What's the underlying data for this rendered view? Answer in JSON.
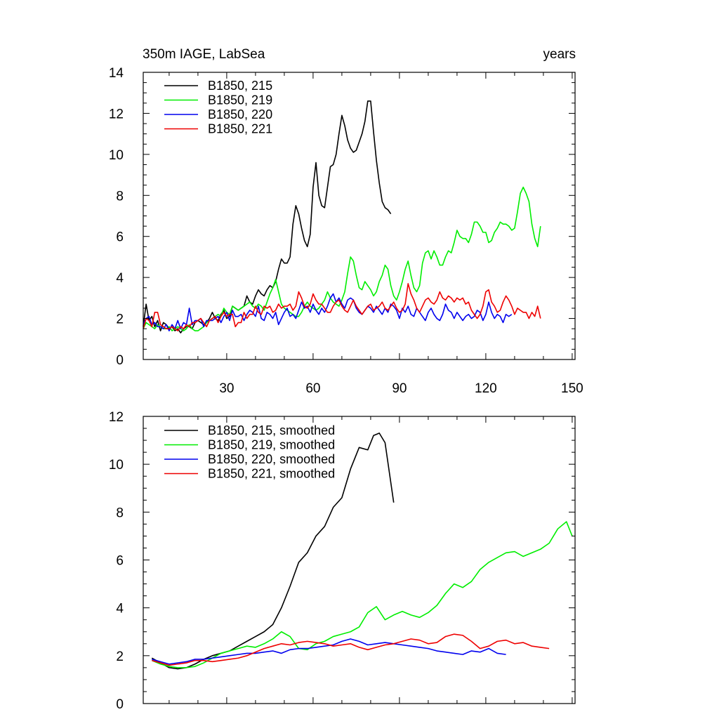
{
  "colors": {
    "215": "#000000",
    "219": "#00ee00",
    "220": "#0000ee",
    "221": "#ee0000"
  },
  "chart_data": [
    {
      "type": "line",
      "title": "350m IAGE, LabSea",
      "units": "years",
      "xlabel": "",
      "ylabel": "",
      "xlim": [
        1,
        151
      ],
      "ylim": [
        0,
        14
      ],
      "x_tick_labels": [
        "30",
        "60",
        "90",
        "120",
        "150"
      ],
      "y_tick_labels": [
        "0",
        "2",
        "4",
        "6",
        "8",
        "10",
        "12",
        "14"
      ],
      "legend": "top-left",
      "series": [
        {
          "name": "B1850, 215",
          "color": "#000000",
          "x_start": 1,
          "values": [
            1.6,
            2.7,
            1.9,
            2.1,
            1.6,
            1.9,
            1.4,
            1.8,
            1.7,
            1.5,
            1.6,
            1.4,
            1.5,
            1.3,
            1.5,
            1.6,
            1.6,
            1.5,
            1.8,
            1.9,
            1.8,
            1.7,
            1.8,
            2.0,
            2.3,
            2.0,
            1.9,
            2.2,
            2.4,
            2.0,
            2.1,
            2.6,
            2.5,
            2.4,
            2.5,
            2.6,
            3.1,
            2.8,
            2.7,
            3.1,
            3.4,
            3.2,
            3.1,
            3.4,
            3.6,
            3.5,
            3.8,
            4.4,
            4.9,
            4.7,
            4.7,
            5.0,
            6.6,
            7.5,
            7.1,
            6.4,
            5.8,
            5.5,
            6.1,
            8.4,
            9.6,
            8.0,
            7.5,
            7.4,
            8.4,
            9.4,
            9.5,
            10.0,
            11.0,
            11.9,
            11.4,
            10.7,
            10.3,
            10.1,
            10.2,
            10.6,
            11.0,
            11.6,
            12.6,
            12.6,
            11.1,
            9.7,
            8.6,
            7.7,
            7.4,
            7.3,
            7.1
          ]
        },
        {
          "name": "B1850, 219",
          "color": "#00ee00",
          "x_start": 1,
          "values": [
            1.5,
            1.8,
            1.7,
            1.6,
            1.5,
            1.7,
            1.6,
            1.5,
            1.5,
            1.6,
            1.4,
            1.5,
            1.6,
            1.5,
            1.4,
            1.5,
            1.7,
            1.5,
            1.4,
            1.4,
            1.5,
            1.6,
            1.8,
            1.9,
            2.0,
            2.1,
            2.2,
            2.1,
            2.5,
            2.3,
            2.2,
            2.6,
            2.5,
            2.4,
            2.5,
            2.6,
            2.7,
            2.8,
            2.6,
            2.5,
            2.7,
            2.6,
            2.4,
            2.8,
            3.2,
            3.5,
            3.9,
            3.3,
            2.7,
            2.5,
            2.4,
            2.3,
            2.2,
            2.1,
            2.1,
            2.3,
            2.6,
            2.8,
            2.6,
            2.5,
            2.4,
            2.5,
            2.7,
            2.9,
            3.3,
            3.0,
            2.8,
            2.7,
            2.6,
            2.9,
            3.3,
            4.2,
            5.0,
            4.8,
            4.1,
            3.5,
            3.4,
            3.8,
            3.6,
            3.4,
            3.1,
            3.3,
            3.8,
            4.1,
            4.6,
            4.4,
            3.6,
            3.1,
            2.9,
            3.3,
            3.8,
            4.4,
            4.8,
            4.1,
            3.5,
            3.3,
            3.6,
            4.7,
            5.2,
            5.3,
            4.9,
            5.3,
            5.0,
            4.6,
            4.6,
            5.0,
            5.3,
            5.2,
            5.7,
            6.3,
            6.0,
            5.9,
            5.9,
            5.7,
            6.1,
            6.7,
            6.7,
            6.5,
            6.2,
            6.2,
            5.7,
            5.8,
            6.2,
            6.4,
            6.7,
            6.6,
            6.6,
            6.5,
            6.3,
            6.4,
            7.2,
            8.1,
            8.4,
            8.1,
            7.7,
            6.6,
            5.9,
            5.5,
            6.5
          ]
        },
        {
          "name": "B1850, 220",
          "color": "#0000ee",
          "x_start": 1,
          "values": [
            1.7,
            2.0,
            2.1,
            1.7,
            1.8,
            1.6,
            1.6,
            1.5,
            1.7,
            1.4,
            1.7,
            1.5,
            1.9,
            1.5,
            1.8,
            1.7,
            2.5,
            1.7,
            1.9,
            1.9,
            2.0,
            1.6,
            1.9,
            1.9,
            1.9,
            2.0,
            2.1,
            1.8,
            2.1,
            2.3,
            1.9,
            2.4,
            2.1,
            2.1,
            2.2,
            1.9,
            2.2,
            2.4,
            2.3,
            2.1,
            2.6,
            2.0,
            1.9,
            2.3,
            2.2,
            2.0,
            2.3,
            1.7,
            2.0,
            2.3,
            2.5,
            2.1,
            2.2,
            2.0,
            2.4,
            2.8,
            2.5,
            2.6,
            2.3,
            2.7,
            2.4,
            2.2,
            2.5,
            2.3,
            2.6,
            3.0,
            3.2,
            2.8,
            3.0,
            2.7,
            2.5,
            2.9,
            3.0,
            2.9,
            2.5,
            2.3,
            2.2,
            2.4,
            2.6,
            2.5,
            2.3,
            2.6,
            2.4,
            2.2,
            2.5,
            2.3,
            2.7,
            2.6,
            2.4,
            2.0,
            2.5,
            2.3,
            2.6,
            2.2,
            2.1,
            2.5,
            2.3,
            2.1,
            1.9,
            2.3,
            2.5,
            2.2,
            2.0,
            1.9,
            2.2,
            2.7,
            2.4,
            2.3,
            2.0,
            2.3,
            2.1,
            1.9,
            2.1,
            2.2,
            2.0,
            2.1,
            2.4,
            2.3,
            1.9,
            2.2,
            2.8,
            2.3,
            2.0,
            2.2,
            2.1,
            1.8,
            2.2,
            2.1,
            2.2
          ]
        },
        {
          "name": "B1850, 221",
          "color": "#ee0000",
          "x_start": 1,
          "values": [
            1.5,
            2.0,
            1.9,
            1.6,
            2.3,
            2.3,
            1.7,
            1.6,
            1.5,
            1.5,
            1.6,
            1.5,
            1.4,
            1.6,
            1.5,
            1.7,
            1.6,
            1.8,
            1.8,
            1.9,
            2.0,
            1.8,
            1.6,
            1.9,
            2.0,
            2.1,
            1.8,
            2.1,
            2.3,
            2.1,
            2.2,
            2.2,
            1.6,
            1.8,
            1.8,
            2.3,
            2.0,
            2.2,
            2.2,
            2.6,
            2.3,
            2.2,
            2.6,
            2.5,
            2.6,
            2.3,
            2.4,
            2.7,
            2.5,
            2.6,
            2.6,
            2.7,
            2.4,
            2.6,
            3.3,
            3.0,
            2.6,
            2.5,
            2.7,
            3.2,
            2.9,
            2.7,
            2.7,
            2.5,
            2.3,
            2.3,
            2.6,
            2.8,
            2.9,
            2.6,
            2.4,
            2.3,
            2.6,
            2.9,
            2.6,
            2.4,
            2.2,
            2.4,
            2.6,
            2.7,
            2.4,
            2.5,
            2.6,
            2.8,
            2.5,
            2.4,
            2.6,
            2.8,
            2.5,
            2.3,
            2.4,
            2.7,
            3.7,
            3.2,
            2.9,
            2.5,
            2.3,
            2.6,
            2.9,
            3.0,
            2.8,
            2.7,
            2.9,
            3.3,
            3.0,
            2.9,
            3.1,
            3.0,
            2.8,
            3.0,
            2.9,
            3.0,
            2.7,
            2.8,
            2.4,
            2.2,
            2.0,
            2.2,
            2.6,
            3.3,
            3.4,
            2.8,
            2.6,
            2.3,
            2.4,
            2.8,
            3.1,
            2.9,
            2.6,
            2.2,
            2.5,
            2.4,
            2.3,
            2.3,
            2.0,
            2.3,
            2.1,
            2.6,
            2.0
          ]
        }
      ]
    },
    {
      "type": "line",
      "title": "",
      "xlabel": "",
      "ylabel": "",
      "xlim": [
        1,
        151
      ],
      "ylim": [
        0,
        12
      ],
      "y_tick_labels": [
        "0",
        "2",
        "4",
        "6",
        "8",
        "10",
        "12"
      ],
      "legend": "top-left",
      "series": [
        {
          "name": "B1850, 215, smoothed",
          "color": "#000000",
          "x": [
            4,
            7,
            10,
            13,
            16,
            19,
            22,
            25,
            28,
            31,
            34,
            37,
            40,
            43,
            46,
            49,
            52,
            55,
            58,
            61,
            64,
            67,
            70,
            73,
            76,
            79,
            81,
            83,
            85,
            88
          ],
          "values": [
            1.9,
            1.7,
            1.5,
            1.45,
            1.5,
            1.65,
            1.85,
            2.0,
            2.1,
            2.2,
            2.4,
            2.6,
            2.8,
            3.0,
            3.3,
            4.0,
            4.9,
            5.9,
            6.3,
            7.0,
            7.4,
            8.2,
            8.6,
            9.8,
            10.7,
            10.6,
            11.2,
            11.3,
            10.9,
            8.4
          ]
        },
        {
          "name": "B1850, 219, smoothed",
          "color": "#00ee00",
          "x": [
            4,
            7,
            10,
            13,
            16,
            19,
            22,
            25,
            28,
            31,
            34,
            37,
            40,
            43,
            46,
            49,
            52,
            55,
            58,
            61,
            64,
            67,
            70,
            73,
            76,
            79,
            82,
            85,
            88,
            91,
            94,
            97,
            100,
            103,
            106,
            109,
            112,
            115,
            118,
            121,
            124,
            127,
            130,
            133,
            136,
            139,
            142,
            145,
            148,
            150
          ],
          "values": [
            1.8,
            1.65,
            1.55,
            1.5,
            1.5,
            1.55,
            1.7,
            1.9,
            2.1,
            2.2,
            2.3,
            2.4,
            2.35,
            2.5,
            2.7,
            3.0,
            2.8,
            2.3,
            2.25,
            2.5,
            2.6,
            2.8,
            2.9,
            3.0,
            3.2,
            3.8,
            4.05,
            3.5,
            3.7,
            3.85,
            3.7,
            3.6,
            3.8,
            4.1,
            4.6,
            5.0,
            4.85,
            5.1,
            5.6,
            5.9,
            6.1,
            6.3,
            6.35,
            6.15,
            6.3,
            6.45,
            6.7,
            7.3,
            7.6,
            7.0
          ]
        },
        {
          "name": "B1850, 220, smoothed",
          "color": "#0000ee",
          "x": [
            4,
            7,
            10,
            13,
            16,
            19,
            22,
            25,
            28,
            31,
            34,
            37,
            40,
            43,
            46,
            49,
            52,
            55,
            58,
            61,
            64,
            67,
            70,
            73,
            76,
            79,
            82,
            85,
            88,
            91,
            94,
            97,
            100,
            103,
            106,
            109,
            112,
            115,
            118,
            121,
            124,
            127
          ],
          "values": [
            1.85,
            1.75,
            1.65,
            1.7,
            1.75,
            1.85,
            1.85,
            1.9,
            1.95,
            2.0,
            2.05,
            2.1,
            2.1,
            2.15,
            2.2,
            2.1,
            2.25,
            2.3,
            2.3,
            2.35,
            2.4,
            2.45,
            2.6,
            2.7,
            2.6,
            2.45,
            2.5,
            2.55,
            2.5,
            2.45,
            2.4,
            2.35,
            2.3,
            2.2,
            2.15,
            2.1,
            2.05,
            2.2,
            2.15,
            2.3,
            2.1,
            2.05
          ]
        },
        {
          "name": "B1850, 221, smoothed",
          "color": "#ee0000",
          "x": [
            4,
            7,
            10,
            13,
            16,
            19,
            22,
            25,
            28,
            31,
            34,
            37,
            40,
            43,
            46,
            49,
            52,
            55,
            58,
            61,
            64,
            67,
            70,
            73,
            76,
            79,
            82,
            85,
            88,
            91,
            94,
            97,
            100,
            103,
            106,
            109,
            112,
            115,
            118,
            121,
            124,
            127,
            130,
            133,
            136,
            139,
            142
          ],
          "values": [
            1.8,
            1.7,
            1.6,
            1.65,
            1.7,
            1.8,
            1.8,
            1.75,
            1.8,
            1.85,
            1.9,
            2.0,
            2.15,
            2.3,
            2.4,
            2.5,
            2.45,
            2.55,
            2.6,
            2.55,
            2.5,
            2.4,
            2.45,
            2.5,
            2.35,
            2.25,
            2.35,
            2.45,
            2.5,
            2.6,
            2.7,
            2.65,
            2.5,
            2.55,
            2.8,
            2.9,
            2.85,
            2.6,
            2.3,
            2.4,
            2.6,
            2.65,
            2.5,
            2.55,
            2.4,
            2.35,
            2.3
          ]
        }
      ]
    }
  ]
}
